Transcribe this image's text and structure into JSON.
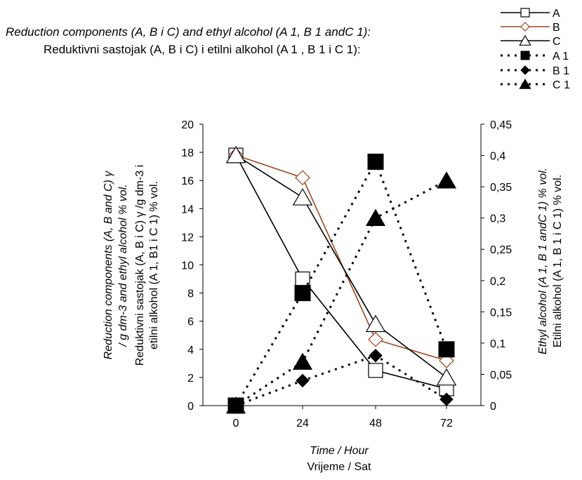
{
  "chart_data": {
    "type": "line",
    "title": "Reduction components (A, B i C) and ethyl alcohol (A 1, B 1 andC 1):",
    "subtitle": "Reduktivni sastojak (A, B i C) i etilni alkohol (A 1 , B 1 i C 1):",
    "x": [
      0,
      24,
      48,
      72
    ],
    "x_tick_labels": [
      "0",
      "24",
      "48",
      "72"
    ],
    "xlabel": "Time / Hour",
    "xlabel_sub": "Vrijeme / Sat",
    "ylabel_left": "Reduction components (A, B and C) γ",
    "ylabel_left_2": "/ g dm-3 and ethyl alcohol % vol.",
    "ylabel_left_3": "Reduktivni sastojak (A, B i C) γ /g dm-3 i",
    "ylabel_left_4": "etilni alkohol (A 1, B1 i C 1) % vol.",
    "ylabel_right": "Ethyl alcohol (A 1, B 1 andC 1) % vol.",
    "ylabel_right_2": "Etilni alkohol (A 1, B 1 i C 1) % vol.",
    "ylim_left": [
      0,
      20
    ],
    "ylim_right": [
      0,
      0.45
    ],
    "left_ticks": [
      "0",
      "2",
      "4",
      "6",
      "8",
      "10",
      "12",
      "14",
      "16",
      "18",
      "20"
    ],
    "right_ticks": [
      "0",
      "0,05",
      "0,1",
      "0,15",
      "0,2",
      "0,25",
      "0,3",
      "0,35",
      "0,4",
      "0,45"
    ],
    "grid": false,
    "legend_position": "top-right",
    "series": [
      {
        "name": "A",
        "axis": "left",
        "values": [
          17.8,
          9.0,
          2.5,
          1.2
        ],
        "marker": "square-open",
        "line": "solid",
        "color": "#000000"
      },
      {
        "name": "B",
        "axis": "left",
        "values": [
          17.8,
          16.2,
          4.7,
          3.2
        ],
        "marker": "diamond-open",
        "line": "solid",
        "color": "#a0461e"
      },
      {
        "name": "C",
        "axis": "left",
        "values": [
          17.8,
          14.8,
          5.8,
          2.0
        ],
        "marker": "triangle-open",
        "line": "solid",
        "color": "#000000"
      },
      {
        "name": "A 1",
        "axis": "right",
        "values": [
          0,
          0.18,
          0.39,
          0.09
        ],
        "marker": "square-filled",
        "line": "dotted",
        "color": "#000000"
      },
      {
        "name": "B 1",
        "axis": "right",
        "values": [
          0,
          0.04,
          0.08,
          0.01
        ],
        "marker": "diamond-filled",
        "line": "dotted",
        "color": "#000000"
      },
      {
        "name": "C 1",
        "axis": "right",
        "values": [
          0,
          0.07,
          0.3,
          0.36
        ],
        "marker": "triangle-filled",
        "line": "dotted",
        "color": "#000000"
      }
    ]
  }
}
